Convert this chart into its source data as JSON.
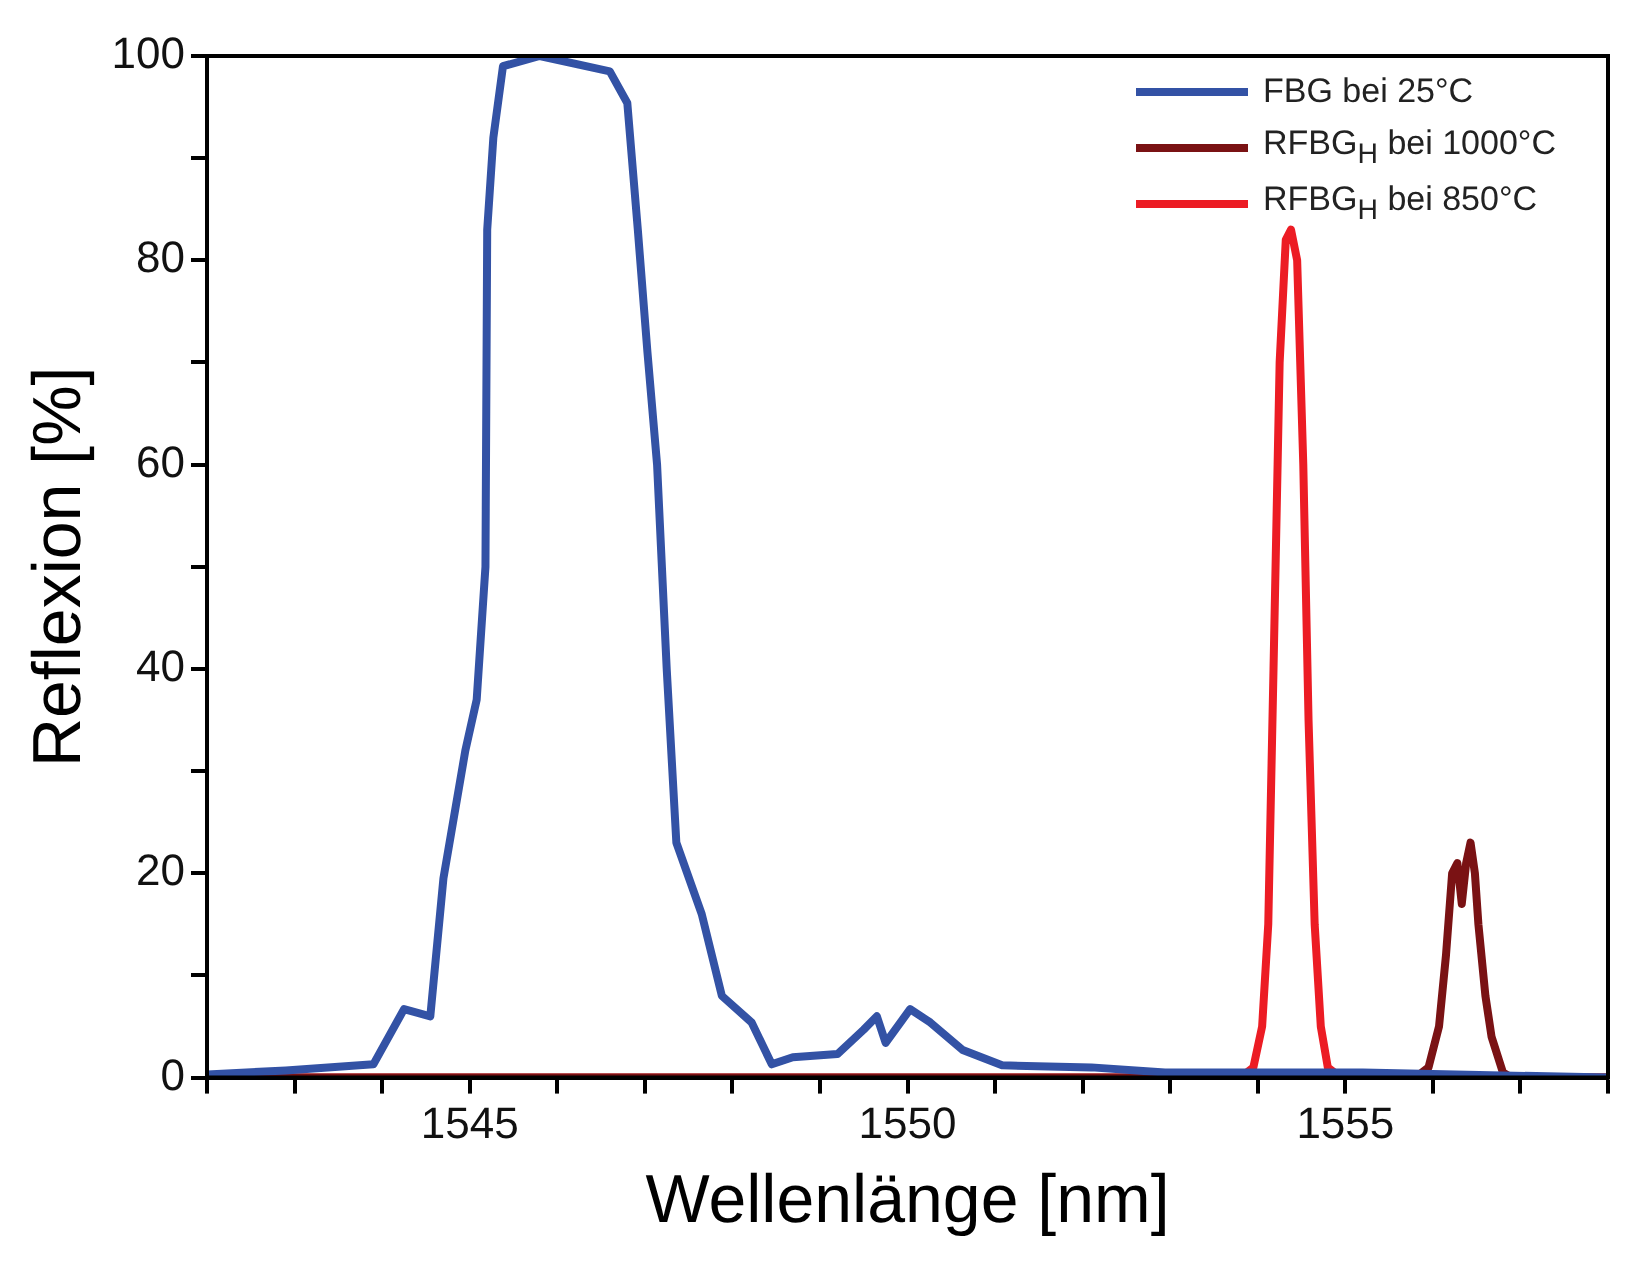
{
  "chart_data": {
    "type": "line",
    "xlabel": "Wellenlänge [nm]",
    "ylabel": "Reflexion [%]",
    "xlim": [
      1542,
      1558
    ],
    "ylim": [
      0,
      100
    ],
    "xticks": [
      {
        "value": 1542,
        "label": null
      },
      {
        "value": 1543,
        "label": null
      },
      {
        "value": 1544,
        "label": null
      },
      1545,
      {
        "value": 1546,
        "label": null
      },
      {
        "value": 1547,
        "label": null
      },
      {
        "value": 1548,
        "label": null
      },
      {
        "value": 1549,
        "label": null
      },
      1550,
      {
        "value": 1551,
        "label": null
      },
      {
        "value": 1552,
        "label": null
      },
      {
        "value": 1553,
        "label": null
      },
      {
        "value": 1554,
        "label": null
      },
      1555,
      {
        "value": 1556,
        "label": null
      },
      {
        "value": 1557,
        "label": null
      },
      {
        "value": 1558,
        "label": null
      }
    ],
    "yticks": [
      0,
      {
        "value": 10,
        "label": null
      },
      20,
      {
        "value": 30,
        "label": null
      },
      40,
      {
        "value": 50,
        "label": null
      },
      60,
      {
        "value": 70,
        "label": null
      },
      80,
      {
        "value": 90,
        "label": null
      },
      100
    ],
    "grid": false,
    "legend": "top right",
    "marker": "none",
    "line_style": "solid",
    "series": [
      {
        "name": "FBG bei 25°C",
        "color": "#3352a5",
        "x": [
          1542,
          1542.9,
          1543.9,
          1544.25,
          1544.55,
          1544.7,
          1544.95,
          1545.08,
          1545.18,
          1545.2,
          1545.27,
          1545.38,
          1545.8,
          1546.6,
          1546.8,
          1546.92,
          1547.03,
          1547.14,
          1547.25,
          1547.36,
          1547.65,
          1547.88,
          1548.22,
          1548.45,
          1548.69,
          1549.2,
          1549.5,
          1549.65,
          1549.75,
          1550.03,
          1550.26,
          1550.63,
          1551.08,
          1552.1,
          1552.94,
          1555.2,
          1558
        ],
        "values": [
          0.3,
          0.7,
          1.3,
          6.7,
          6,
          19.5,
          32,
          37,
          50,
          83,
          92,
          99,
          100,
          98.5,
          95.4,
          83,
          71,
          60,
          40,
          23,
          16,
          8,
          5.4,
          1.3,
          2,
          2.3,
          4.7,
          6,
          3.4,
          6.7,
          5.4,
          2.7,
          1.2,
          1,
          0.5,
          0.5,
          0
        ]
      },
      {
        "name": "RFBG$_{H}$ bei 1000°C",
        "color": "#7a1214",
        "x": [
          1542,
          1555.8,
          1555.95,
          1556.07,
          1556.15,
          1556.22,
          1556.28,
          1556.33,
          1556.38,
          1556.43,
          1556.48,
          1556.52,
          1556.6,
          1556.67,
          1556.8,
          1556.9,
          1558
        ],
        "values": [
          0,
          0,
          1,
          5,
          12,
          20,
          21,
          17,
          21,
          23,
          20,
          15,
          8,
          4,
          0.5,
          0,
          0
        ]
      },
      {
        "name": "RFBG$_{H}$ bei 850°C",
        "color": "#ec1c24",
        "x": [
          1542,
          1553.8,
          1553.95,
          1554.05,
          1554.12,
          1554.18,
          1554.25,
          1554.32,
          1554.38,
          1554.45,
          1554.52,
          1554.58,
          1554.65,
          1554.72,
          1554.8,
          1554.95,
          1558
        ],
        "values": [
          0,
          0,
          1,
          5,
          15,
          40,
          70,
          82,
          83,
          80,
          60,
          35,
          15,
          5,
          1,
          0,
          0
        ]
      }
    ]
  }
}
